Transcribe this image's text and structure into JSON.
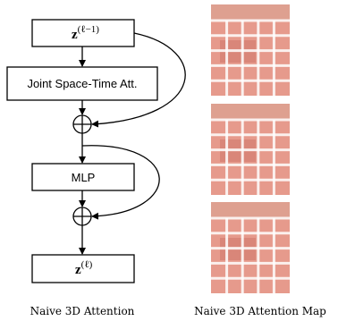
{
  "diagram": {
    "nodes": [
      {
        "label": "z",
        "superscript": "(ℓ−1)"
      },
      {
        "label": "Joint Space-Time Att."
      },
      {
        "label": "MLP"
      },
      {
        "label": "z",
        "superscript": "(ℓ)"
      }
    ]
  },
  "captions": [
    "Naive 3D Attention",
    "Naive 3D Attention Map"
  ]
}
